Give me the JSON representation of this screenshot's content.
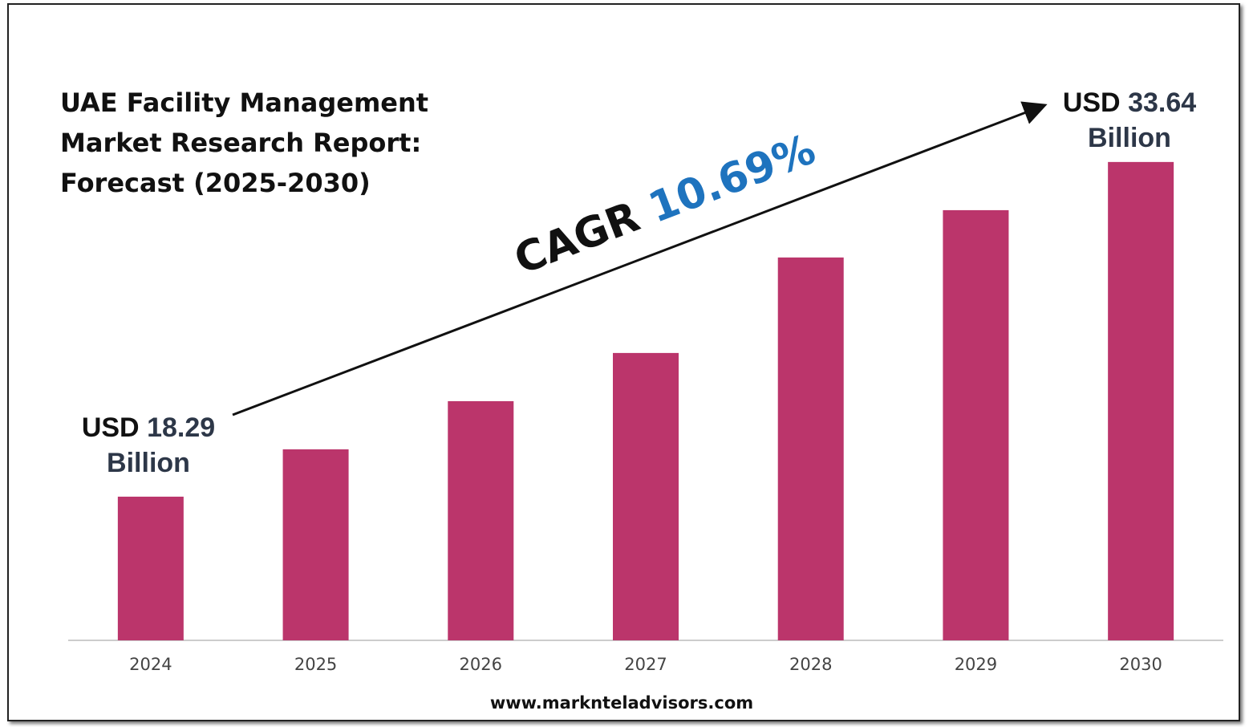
{
  "chart_data": {
    "type": "bar",
    "title": [
      "UAE Facility Management",
      "Market Research Report:",
      "Forecast (2025-2030)"
    ],
    "categories": [
      "2024",
      "2025",
      "2026",
      "2027",
      "2028",
      "2029",
      "2030"
    ],
    "values": [
      18.29,
      20.46,
      22.67,
      24.88,
      29.26,
      31.43,
      33.64
    ],
    "color": "#bb356b",
    "ylim": [
      11.7,
      34.5
    ],
    "value_prefix": "USD",
    "value_unit": "Billion",
    "cagr_label": "CAGR",
    "cagr_value": "10.69%",
    "source": "www.marknteladvisors.com"
  }
}
